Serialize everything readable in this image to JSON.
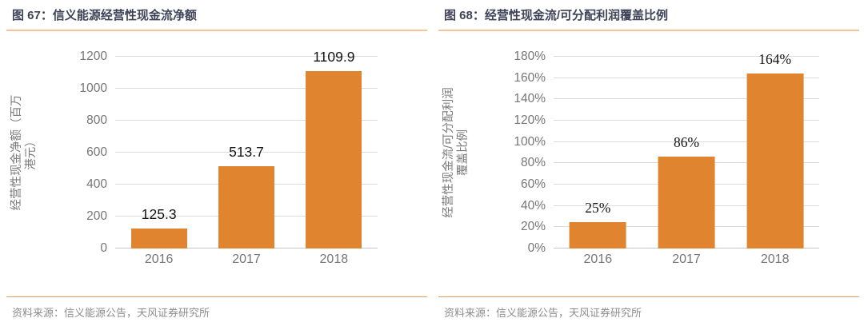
{
  "panels": [
    {
      "title": "图 67：信义能源经营性现金流净额",
      "source": "资料来源：信义能源公告，天风证券研究所"
    },
    {
      "title": "图 68：经营性现金流/可分配利润覆盖比例",
      "source": "资料来源：信义能源公告，天风证券研究所"
    }
  ],
  "chart_data": [
    {
      "type": "bar",
      "title": "图 67：信义能源经营性现金流净额",
      "categories": [
        "2016",
        "2017",
        "2018"
      ],
      "values": [
        125.3,
        513.7,
        1109.9
      ],
      "data_labels": [
        "125.3",
        "513.7",
        "1109.9"
      ],
      "ylabel": "经营性现金净额（百万\n港元）",
      "xlabel": "",
      "ylim": [
        0,
        1200
      ],
      "yticks": [
        "0",
        "200",
        "400",
        "600",
        "800",
        "1000",
        "1200"
      ],
      "grid": true,
      "legend": false,
      "bar_color": "#E1842F",
      "label_font": "sans"
    },
    {
      "type": "bar",
      "title": "图 68：经营性现金流/可分配利润覆盖比例",
      "categories": [
        "2016",
        "2017",
        "2018"
      ],
      "values": [
        25,
        86,
        164
      ],
      "data_labels": [
        "25%",
        "86%",
        "164%"
      ],
      "ylabel": "经营性现金流/可分配利润\n覆盖比例",
      "xlabel": "",
      "ylim": [
        0,
        180
      ],
      "yticks": [
        "0%",
        "20%",
        "40%",
        "60%",
        "80%",
        "100%",
        "120%",
        "140%",
        "160%",
        "180%"
      ],
      "grid": true,
      "legend": false,
      "bar_color": "#E1842F",
      "label_font": "serif"
    }
  ],
  "colors": {
    "bar": "#E1842F",
    "title_text": "#3E4358",
    "title_rule": "#F3C49B",
    "source_rule": "#E8995C",
    "gridline": "#DCDCDC",
    "baseline": "#C6C6C6",
    "tick_text": "#767676",
    "ylabel_text": "#7A7A7A",
    "source_text": "#8C8C8C",
    "data_label_text": "#141414"
  }
}
